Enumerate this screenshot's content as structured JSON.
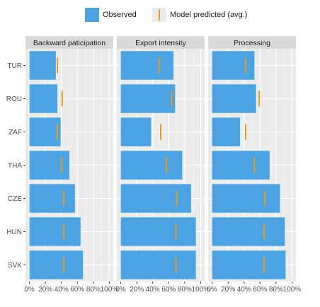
{
  "chart_data": {
    "type": "bar",
    "orientation": "horizontal",
    "categories": [
      "TUR",
      "ROU",
      "ZAF",
      "THA",
      "CZE",
      "HUN",
      "SVK"
    ],
    "xlim": [
      0,
      100
    ],
    "x_ticks": [
      0,
      20,
      40,
      60,
      80,
      100
    ],
    "tick_suffix": "%",
    "grid": true,
    "legend_position": "top",
    "legend": [
      {
        "key": "observed",
        "label": "Observed",
        "color": "#4aa3e3"
      },
      {
        "key": "predicted",
        "label": "Model predicted (avg.)",
        "color": "#e89a1c"
      }
    ],
    "panels": [
      {
        "title": "Backward paticipation",
        "observed": [
          33,
          35,
          39,
          50,
          57,
          64,
          67
        ],
        "predicted": [
          35,
          41,
          35,
          40,
          43,
          43,
          43
        ]
      },
      {
        "title": "Export intensity",
        "observed": [
          66,
          68,
          38,
          77,
          88,
          94,
          94
        ],
        "predicted": [
          48,
          64,
          50,
          57,
          70,
          69,
          69
        ]
      },
      {
        "title": "Processing",
        "observed": [
          53,
          55,
          35,
          72,
          85,
          91,
          92
        ],
        "predicted": [
          42,
          59,
          42,
          53,
          66,
          65,
          65
        ]
      }
    ]
  }
}
